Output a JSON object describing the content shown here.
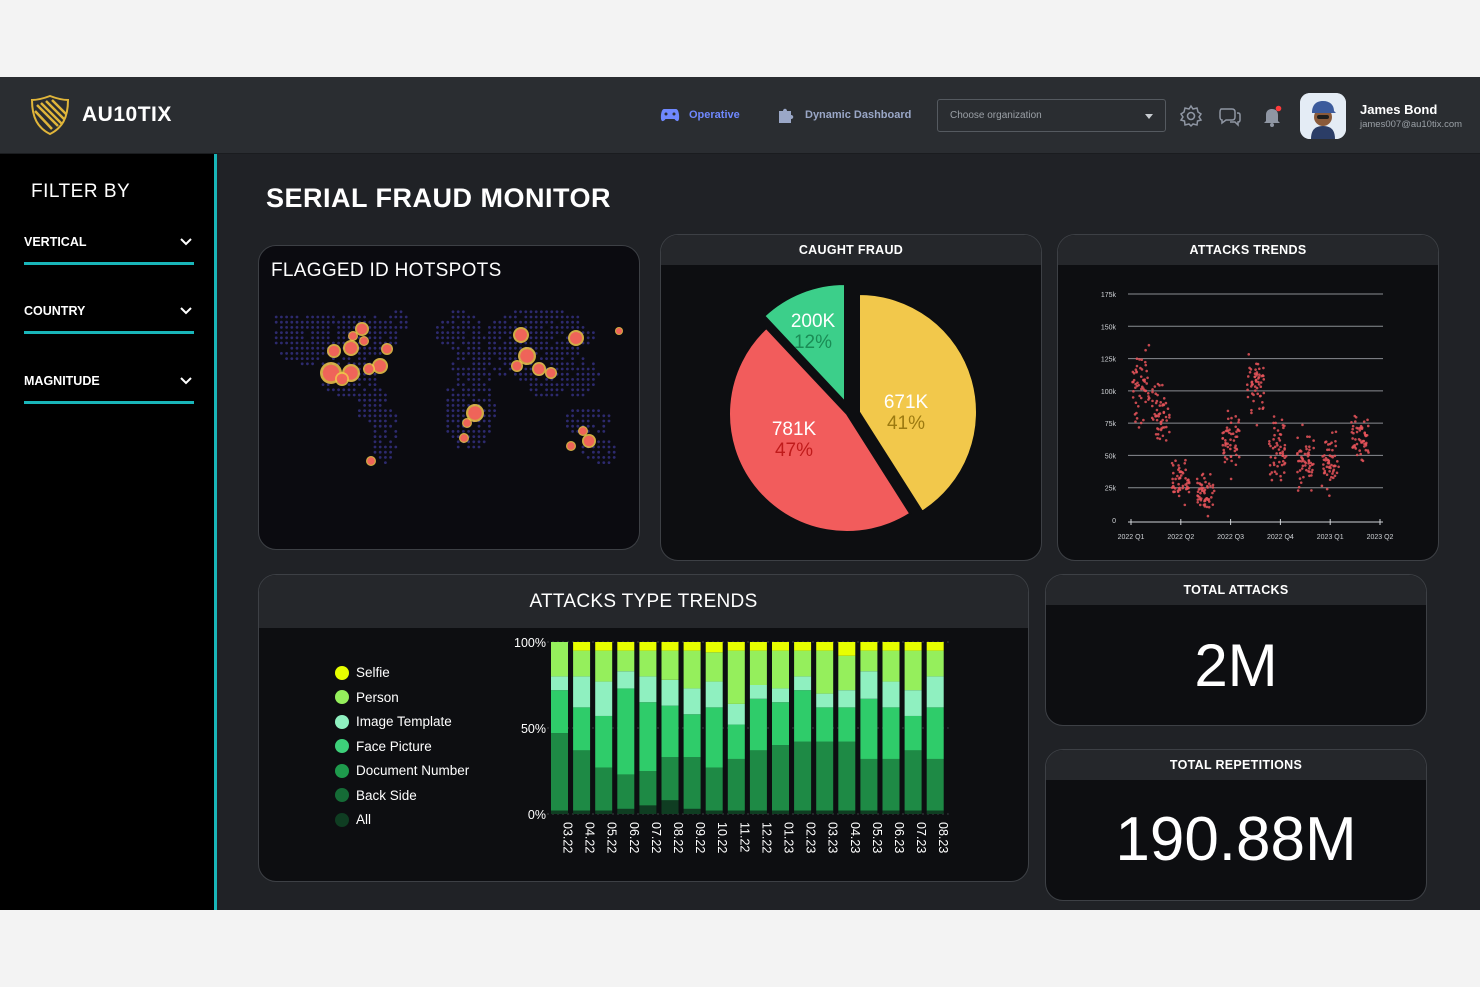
{
  "app": {
    "brand": "AU10TIX",
    "nav": [
      {
        "label": "Operative"
      },
      {
        "label": "Dynamic Dashboard"
      }
    ],
    "org_select": {
      "placeholder": "Choose organization"
    },
    "user": {
      "name": "James Bond",
      "email": "james007@au10tix.com"
    }
  },
  "sidebar": {
    "title": "FILTER BY",
    "filters": [
      {
        "label": "VERTICAL"
      },
      {
        "label": "COUNTRY"
      },
      {
        "label": "MAGNITUDE"
      }
    ]
  },
  "page": {
    "title": "SERIAL FRAUD MONITOR"
  },
  "cards": {
    "hotspots": {
      "title": "FLAGGED ID HOTSPOTS"
    },
    "caught_fraud": {
      "title": "CAUGHT FRAUD"
    },
    "attacks_trends": {
      "title": "ATTACKS TRENDS"
    },
    "attack_types": {
      "title": "ATTACKS TYPE TRENDS"
    },
    "total_attacks": {
      "title": "TOTAL ATTACKS",
      "value": "2M"
    },
    "total_repetitions": {
      "title": "TOTAL REPETITIONS",
      "value": "190.88M"
    }
  },
  "colors": {
    "accent_teal": "#19b6b9",
    "nav_active": "#6f88ff",
    "pie_yellow": "#f2c84b",
    "pie_red": "#f25c5c",
    "pie_green": "#3ccf8a",
    "scatter_red": "#e8545a"
  },
  "chart_data": [
    {
      "type": "pie",
      "slices": [
        {
          "value_label": "671K",
          "percent_label": "41%",
          "value": 671000,
          "percent": 41,
          "color": "#f2c84b"
        },
        {
          "value_label": "781K",
          "percent_label": "47%",
          "value": 781000,
          "percent": 47,
          "color": "#f25c5c"
        },
        {
          "value_label": "200K",
          "percent_label": "12%",
          "value": 200000,
          "percent": 12,
          "color": "#3ccf8a"
        }
      ]
    },
    {
      "type": "scatter",
      "y_ticks": [
        "0",
        "25k",
        "50k",
        "75k",
        "100k",
        "125k",
        "150k",
        "175k"
      ],
      "ylim": [
        0,
        175000
      ],
      "x_ticks": [
        "2022 Q1",
        "2022 Q2",
        "2022 Q3",
        "2022 Q4",
        "2023 Q1",
        "2023 Q2"
      ],
      "clusters": [
        {
          "x": 0.2,
          "mean": 105000,
          "spread": 22000
        },
        {
          "x": 0.6,
          "mean": 85000,
          "spread": 18000
        },
        {
          "x": 1.0,
          "mean": 30000,
          "spread": 14000
        },
        {
          "x": 1.5,
          "mean": 22000,
          "spread": 12000
        },
        {
          "x": 2.0,
          "mean": 60000,
          "spread": 18000
        },
        {
          "x": 2.5,
          "mean": 105000,
          "spread": 20000
        },
        {
          "x": 2.95,
          "mean": 55000,
          "spread": 20000
        },
        {
          "x": 3.5,
          "mean": 45000,
          "spread": 18000
        },
        {
          "x": 4.0,
          "mean": 45000,
          "spread": 16000
        },
        {
          "x": 4.6,
          "mean": 65000,
          "spread": 16000
        }
      ],
      "grid": true
    },
    {
      "type": "bar",
      "stacked": true,
      "categories": [
        "03.22",
        "04.22",
        "05.22",
        "06.22",
        "07.22",
        "08.22",
        "09.22",
        "10.22",
        "11.22",
        "12.22",
        "01.23",
        "02.23",
        "03.23",
        "04.23",
        "05.23",
        "06.23",
        "07.23",
        "08.23"
      ],
      "y_ticks": [
        "0%",
        "50%",
        "100%"
      ],
      "ylim": [
        0,
        100
      ],
      "series": [
        {
          "name": "All",
          "color": "#0f3d22",
          "values": [
            2,
            2,
            2,
            3,
            5,
            8,
            3,
            2,
            2,
            2,
            2,
            2,
            2,
            2,
            2,
            2,
            2,
            2
          ]
        },
        {
          "name": "Back Side",
          "color": "#1e8a45",
          "values": [
            45,
            35,
            25,
            20,
            20,
            25,
            30,
            25,
            30,
            35,
            38,
            40,
            40,
            40,
            30,
            30,
            35,
            30
          ]
        },
        {
          "name": "Document Number",
          "color": "#2fcc6a",
          "values": [
            25,
            25,
            30,
            50,
            40,
            30,
            25,
            35,
            20,
            30,
            25,
            30,
            20,
            20,
            35,
            30,
            20,
            30
          ]
        },
        {
          "name": "Face Picture",
          "color": "#8ff0c0",
          "values": [
            8,
            18,
            20,
            10,
            15,
            15,
            15,
            15,
            12,
            8,
            8,
            8,
            8,
            10,
            16,
            15,
            15,
            18
          ]
        },
        {
          "name": "Image Template",
          "color": "#95ef5c",
          "values": [
            20,
            15,
            18,
            12,
            15,
            17,
            22,
            17,
            31,
            20,
            22,
            15,
            25,
            20,
            12,
            18,
            23,
            15
          ]
        },
        {
          "name": "Person",
          "color": "#e7ff00",
          "values": [
            0,
            5,
            5,
            5,
            5,
            5,
            5,
            6,
            5,
            5,
            5,
            5,
            5,
            8,
            5,
            5,
            5,
            5
          ]
        },
        {
          "name": "Selfie",
          "color": "#e7ff00",
          "values": [
            0,
            0,
            0,
            0,
            0,
            0,
            0,
            0,
            0,
            0,
            0,
            0,
            0,
            0,
            0,
            0,
            0,
            0
          ]
        }
      ],
      "legend": [
        "Selfie",
        "Person",
        "Image Template",
        "Face Picture",
        "Document Number",
        "Back Side",
        "All"
      ],
      "legend_colors": [
        "#e7ff00",
        "#95ef5c",
        "#8ff0c0",
        "#3dd07a",
        "#1e9a4c",
        "#156b36",
        "#0f3d22"
      ]
    }
  ]
}
